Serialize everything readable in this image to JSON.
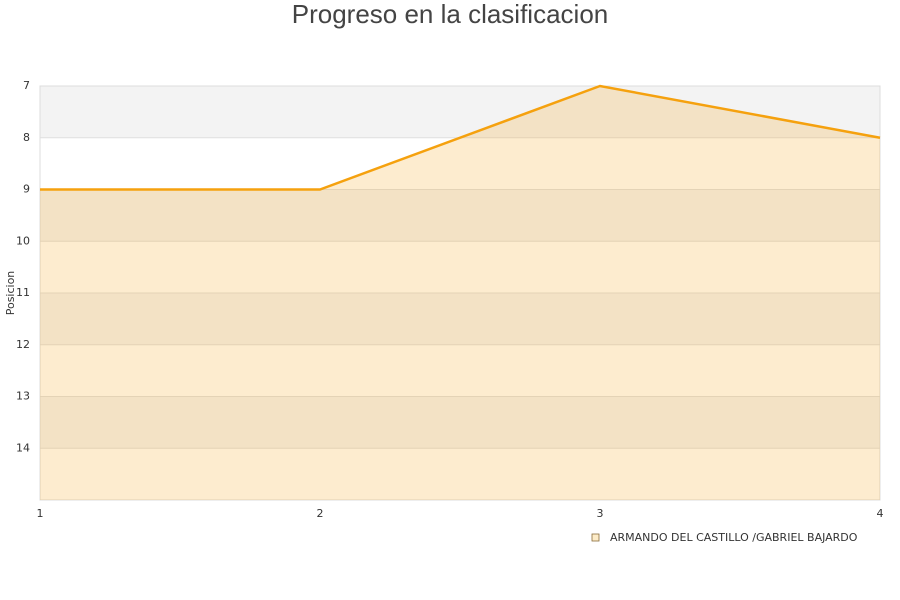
{
  "chart_data": {
    "type": "area",
    "title": "Progreso en la clasificacion",
    "y_label": "Posicion",
    "x": [
      1,
      2,
      3,
      4
    ],
    "xlim": [
      1,
      4
    ],
    "xticks": [
      1,
      2,
      3,
      4
    ],
    "ylim": [
      15,
      7
    ],
    "yticks": [
      7,
      8,
      9,
      10,
      11,
      12,
      13,
      14
    ],
    "y_inverted": true,
    "grid": true,
    "series": [
      {
        "name": "ARMANDO DEL CASTILLO /GABRIEL BAJARDO",
        "color": "#f5a10e",
        "values": [
          9,
          9,
          7,
          8
        ]
      }
    ],
    "legend": "bottom-right"
  }
}
